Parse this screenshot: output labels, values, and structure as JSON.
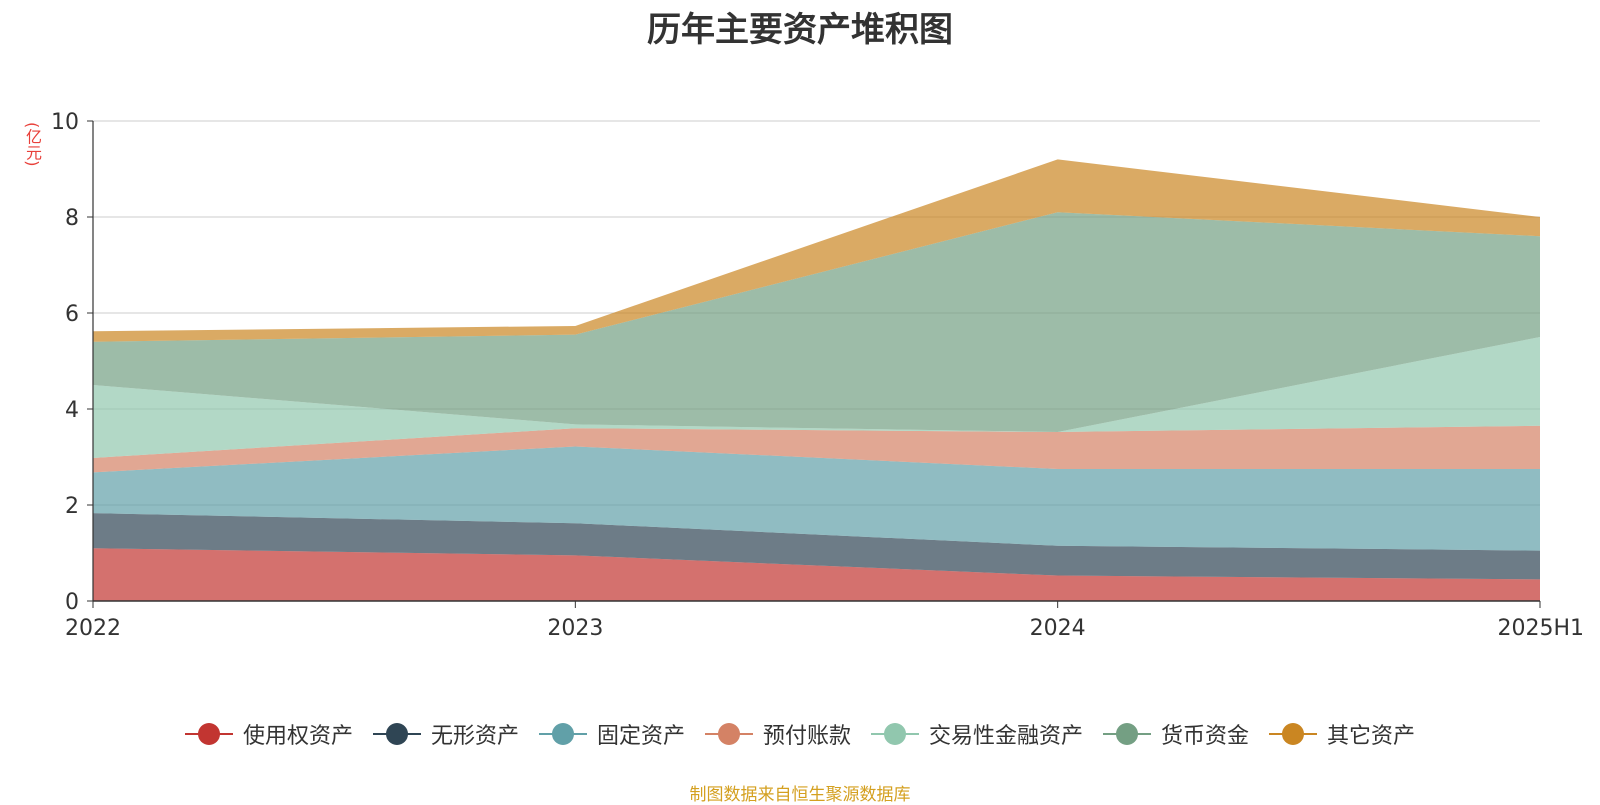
{
  "chart_data": {
    "type": "area",
    "stacked": true,
    "title": "历年主要资产堆积图",
    "unit": "(亿元)",
    "categories": [
      "2022",
      "2023",
      "2024",
      "2025H1"
    ],
    "ylim": [
      0,
      10
    ],
    "yticks": [
      "0",
      "2",
      "4",
      "6",
      "8",
      "10"
    ],
    "grid": true,
    "legend_position": "bottom",
    "series": [
      {
        "name": "使用权资产",
        "color": "#c23531",
        "values": [
          1.1,
          0.95,
          0.53,
          0.45
        ]
      },
      {
        "name": "无形资产",
        "color": "#2f4554",
        "values": [
          0.73,
          0.67,
          0.62,
          0.6
        ]
      },
      {
        "name": "固定资产",
        "color": "#61a0a8",
        "values": [
          0.85,
          1.6,
          1.6,
          1.7
        ]
      },
      {
        "name": "预付账款",
        "color": "#d48265",
        "values": [
          0.3,
          0.38,
          0.77,
          0.9
        ]
      },
      {
        "name": "交易性金融资产",
        "color": "#91c7ae",
        "values": [
          1.52,
          0.08,
          0.0,
          1.85
        ]
      },
      {
        "name": "货币资金",
        "color": "#749f83",
        "values": [
          0.9,
          1.87,
          4.58,
          2.1
        ]
      },
      {
        "name": "其它资产",
        "color": "#ca8622",
        "values": [
          0.22,
          0.18,
          1.1,
          0.4
        ]
      }
    ]
  },
  "footer": {
    "source": "制图数据来自恒生聚源数据库"
  }
}
